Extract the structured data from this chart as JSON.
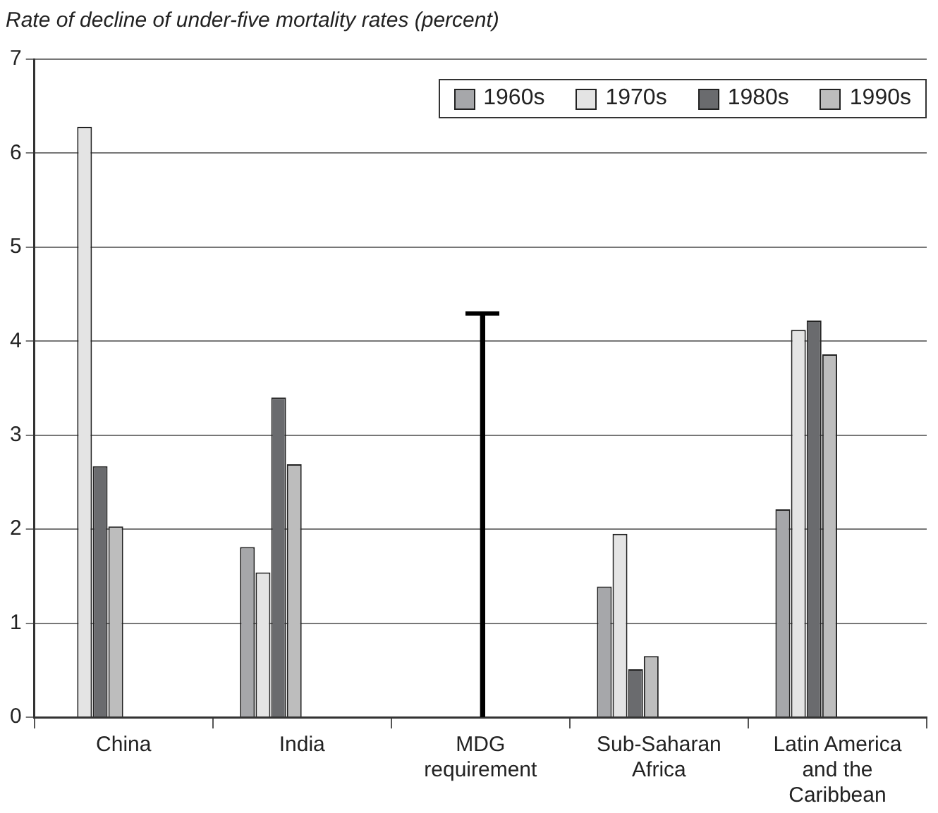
{
  "chart_data": {
    "type": "bar",
    "title": "Rate of decline of under-five mortality rates (percent)",
    "categories": [
      "China",
      "India",
      "MDG requirement",
      "Sub-Saharan Africa",
      "Latin America and the Caribbean"
    ],
    "ylim": [
      0,
      7
    ],
    "yticks": [
      0,
      1,
      2,
      3,
      4,
      5,
      6,
      7
    ],
    "grid": "y",
    "legend": "top right",
    "series": [
      {
        "name": "1960s",
        "color": "#a6a7aa",
        "values": [
          null,
          1.81,
          null,
          1.39,
          2.21
        ]
      },
      {
        "name": "1970s",
        "color": "#e4e4e4",
        "values": [
          6.28,
          1.54,
          null,
          1.95,
          4.12
        ]
      },
      {
        "name": "1980s",
        "color": "#6a6b6e",
        "values": [
          2.67,
          3.4,
          null,
          0.51,
          4.22
        ]
      },
      {
        "name": "1990s",
        "color": "#bdbdbd",
        "values": [
          2.03,
          2.69,
          null,
          0.65,
          3.86
        ]
      },
      {
        "color": "#000000",
        "values": [
          null,
          null,
          4.3,
          null,
          null
        ]
      }
    ]
  }
}
